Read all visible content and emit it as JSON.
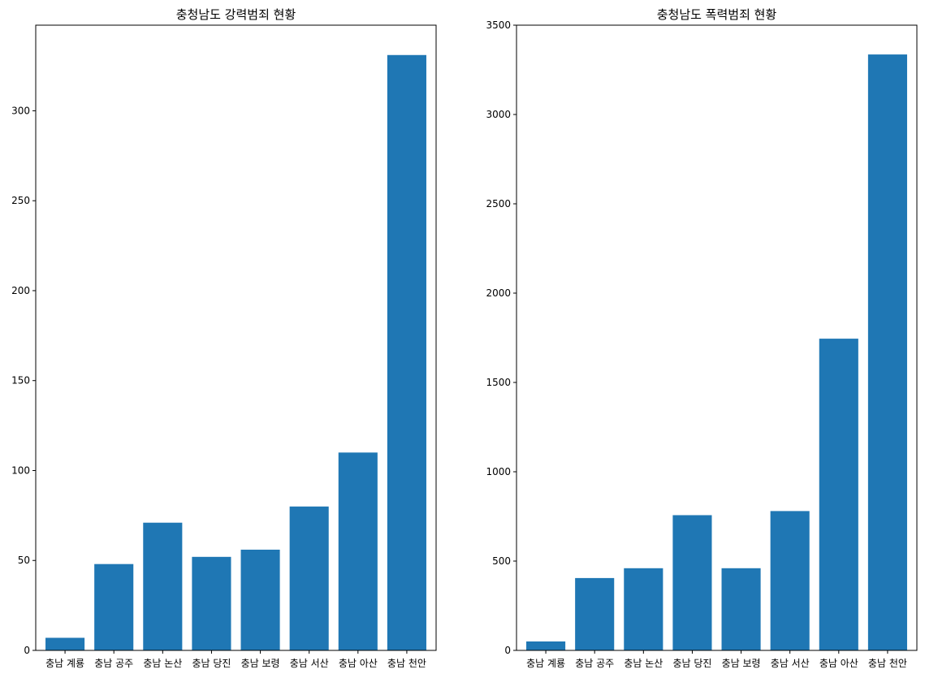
{
  "chart_data": [
    {
      "type": "bar",
      "title": "충청남도 강력범죄 현황",
      "xlabel": "",
      "ylabel": "",
      "categories": [
        "충남 계룡",
        "충남 공주",
        "충남 논산",
        "충남 당진",
        "충남 보령",
        "충남 서산",
        "충남 아산",
        "충남 천안"
      ],
      "values": [
        7,
        48,
        71,
        52,
        56,
        80,
        110,
        331
      ],
      "ylim": [
        0,
        347.6
      ],
      "yticks": [
        0,
        50,
        100,
        150,
        200,
        250,
        300
      ],
      "ytick_labels": [
        "0",
        "50",
        "100",
        "150",
        "200",
        "250",
        "300"
      ],
      "color": "#1f77b4",
      "grid": false,
      "legend": "none"
    },
    {
      "type": "bar",
      "title": "충청남도 폭력범죄 현황",
      "xlabel": "",
      "ylabel": "",
      "categories": [
        "충남 계룡",
        "충남 공주",
        "충남 논산",
        "충남 당진",
        "충남 보령",
        "충남 서산",
        "충남 아산",
        "충남 천안"
      ],
      "values": [
        50,
        405,
        460,
        757,
        460,
        780,
        1745,
        3336
      ],
      "ylim": [
        0,
        3500
      ],
      "yticks": [
        0,
        500,
        1000,
        1500,
        2000,
        2500,
        3000,
        3500
      ],
      "ytick_labels": [
        "0",
        "500",
        "1000",
        "1500",
        "2000",
        "2500",
        "3000",
        "3500"
      ],
      "color": "#1f77b4",
      "grid": false,
      "legend": "none"
    }
  ]
}
